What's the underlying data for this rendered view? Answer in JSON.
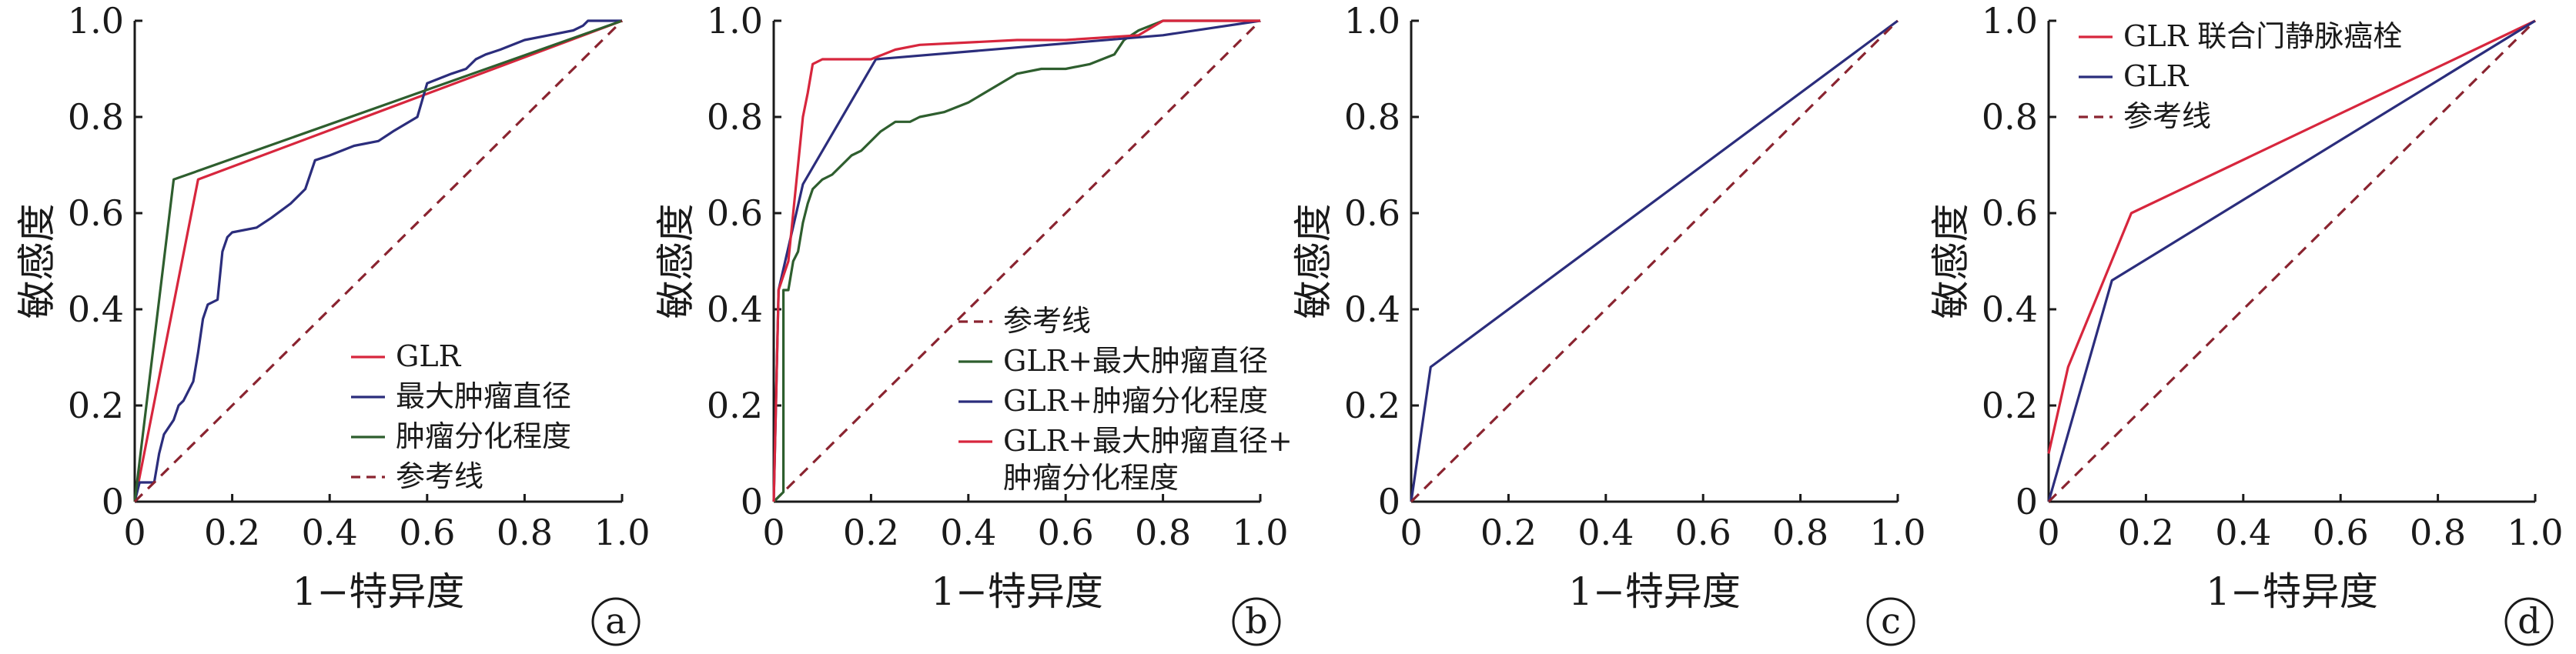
{
  "colors": {
    "red": "#d7263d",
    "navy": "#2b2d7c",
    "green": "#2e5e2e",
    "reference": "#8a2430"
  },
  "chart_data": [
    {
      "type": "line",
      "panel_label": "a",
      "xlabel": "1−特异度",
      "ylabel": "敏感度",
      "xlim": [
        0,
        1
      ],
      "ylim": [
        0,
        1
      ],
      "xticks": [
        "0",
        "0.2",
        "0.4",
        "0.6",
        "0.8",
        "1.0"
      ],
      "yticks": [
        "0",
        "0.2",
        "0.4",
        "0.6",
        "0.8",
        "1.0"
      ],
      "legend_position": "bottom-right",
      "series": [
        {
          "name": "GLR",
          "color": "red",
          "dashed": false,
          "x": [
            0,
            0.13,
            1
          ],
          "y": [
            0,
            0.67,
            1
          ]
        },
        {
          "name": "最大肿瘤直径",
          "color": "navy",
          "dashed": false,
          "x": [
            0,
            0.01,
            0.04,
            0.05,
            0.06,
            0.08,
            0.09,
            0.1,
            0.12,
            0.13,
            0.14,
            0.15,
            0.17,
            0.18,
            0.19,
            0.2,
            0.25,
            0.28,
            0.32,
            0.35,
            0.37,
            0.4,
            0.45,
            0.5,
            0.53,
            0.58,
            0.6,
            0.65,
            0.68,
            0.7,
            0.72,
            0.75,
            0.8,
            0.85,
            0.9,
            0.92,
            0.93,
            1.0
          ],
          "y": [
            0,
            0.04,
            0.04,
            0.1,
            0.14,
            0.17,
            0.2,
            0.21,
            0.25,
            0.31,
            0.38,
            0.41,
            0.42,
            0.52,
            0.55,
            0.56,
            0.57,
            0.59,
            0.62,
            0.65,
            0.71,
            0.72,
            0.74,
            0.75,
            0.77,
            0.8,
            0.87,
            0.89,
            0.9,
            0.92,
            0.93,
            0.94,
            0.96,
            0.97,
            0.98,
            0.99,
            1.0,
            1.0
          ]
        },
        {
          "name": "肿瘤分化程度",
          "color": "green",
          "dashed": false,
          "x": [
            0,
            0.08,
            1
          ],
          "y": [
            0,
            0.67,
            1
          ]
        },
        {
          "name": "参考线",
          "color": "reference",
          "dashed": true,
          "x": [
            0,
            1
          ],
          "y": [
            0,
            1
          ]
        }
      ]
    },
    {
      "type": "line",
      "panel_label": "b",
      "xlabel": "1−特异度",
      "ylabel": "敏感度",
      "xlim": [
        0,
        1
      ],
      "ylim": [
        0,
        1
      ],
      "xticks": [
        "0",
        "0.2",
        "0.4",
        "0.6",
        "0.8",
        "1.0"
      ],
      "yticks": [
        "0",
        "0.2",
        "0.4",
        "0.6",
        "0.8",
        "1.0"
      ],
      "legend_position": "bottom-right",
      "series": [
        {
          "name": "参考线",
          "color": "reference",
          "dashed": true,
          "x": [
            0,
            1
          ],
          "y": [
            0,
            1
          ]
        },
        {
          "name": "GLR+最大肿瘤直径",
          "color": "green",
          "dashed": false,
          "x": [
            0,
            0.02,
            0.02,
            0.03,
            0.04,
            0.05,
            0.06,
            0.07,
            0.08,
            0.1,
            0.12,
            0.14,
            0.16,
            0.18,
            0.2,
            0.22,
            0.25,
            0.28,
            0.3,
            0.35,
            0.4,
            0.45,
            0.5,
            0.55,
            0.6,
            0.65,
            0.7,
            0.72,
            0.75,
            0.8,
            1.0
          ],
          "y": [
            0,
            0.02,
            0.44,
            0.44,
            0.5,
            0.52,
            0.58,
            0.62,
            0.65,
            0.67,
            0.68,
            0.7,
            0.72,
            0.73,
            0.75,
            0.77,
            0.79,
            0.79,
            0.8,
            0.81,
            0.83,
            0.86,
            0.89,
            0.9,
            0.9,
            0.91,
            0.93,
            0.96,
            0.98,
            1.0,
            1.0
          ]
        },
        {
          "name": "GLR+肿瘤分化程度",
          "color": "navy",
          "dashed": false,
          "x": [
            0,
            0.01,
            0.06,
            0.21,
            0.8,
            1.0
          ],
          "y": [
            0,
            0.44,
            0.66,
            0.92,
            0.97,
            1.0
          ]
        },
        {
          "name": "GLR+最大肿瘤直径+肿瘤分化程度",
          "name_line1": "GLR+最大肿瘤直径+",
          "name_line2": "肿瘤分化程度",
          "color": "red",
          "dashed": false,
          "x": [
            0,
            0.01,
            0.02,
            0.03,
            0.04,
            0.05,
            0.06,
            0.07,
            0.08,
            0.1,
            0.2,
            0.25,
            0.3,
            0.5,
            0.6,
            0.75,
            0.8,
            1.0
          ],
          "y": [
            0,
            0.44,
            0.47,
            0.5,
            0.6,
            0.7,
            0.8,
            0.85,
            0.91,
            0.92,
            0.92,
            0.94,
            0.95,
            0.96,
            0.96,
            0.97,
            1.0,
            1.0
          ]
        }
      ]
    },
    {
      "type": "line",
      "panel_label": "c",
      "xlabel": "1−特异度",
      "ylabel": "敏感度",
      "xlim": [
        0,
        1
      ],
      "ylim": [
        0,
        1
      ],
      "xticks": [
        "0",
        "0.2",
        "0.4",
        "0.6",
        "0.8",
        "1.0"
      ],
      "yticks": [
        "0",
        "0.2",
        "0.4",
        "0.6",
        "0.8",
        "1.0"
      ],
      "legend_position": "none",
      "series": [
        {
          "name": "",
          "color": "navy",
          "dashed": false,
          "x": [
            0,
            0.04,
            1
          ],
          "y": [
            0,
            0.28,
            1
          ]
        },
        {
          "name": "",
          "color": "reference",
          "dashed": true,
          "x": [
            0,
            1
          ],
          "y": [
            0,
            1
          ]
        }
      ]
    },
    {
      "type": "line",
      "panel_label": "d",
      "xlabel": "1−特异度",
      "ylabel": "敏感度",
      "xlim": [
        0,
        1
      ],
      "ylim": [
        0,
        1
      ],
      "xticks": [
        "0",
        "0.2",
        "0.4",
        "0.6",
        "0.8",
        "1.0"
      ],
      "yticks": [
        "0",
        "0.2",
        "0.4",
        "0.6",
        "0.8",
        "1.0"
      ],
      "legend_position": "top-left",
      "series": [
        {
          "name": "GLR 联合门静脉癌栓",
          "color": "red",
          "dashed": false,
          "x": [
            0,
            0.04,
            0.17,
            1
          ],
          "y": [
            0.1,
            0.28,
            0.6,
            1
          ]
        },
        {
          "name": "GLR",
          "color": "navy",
          "dashed": false,
          "x": [
            0,
            0.13,
            1
          ],
          "y": [
            0,
            0.46,
            1
          ]
        },
        {
          "name": "参考线",
          "color": "reference",
          "dashed": true,
          "x": [
            0,
            1
          ],
          "y": [
            0,
            1
          ]
        }
      ]
    }
  ]
}
